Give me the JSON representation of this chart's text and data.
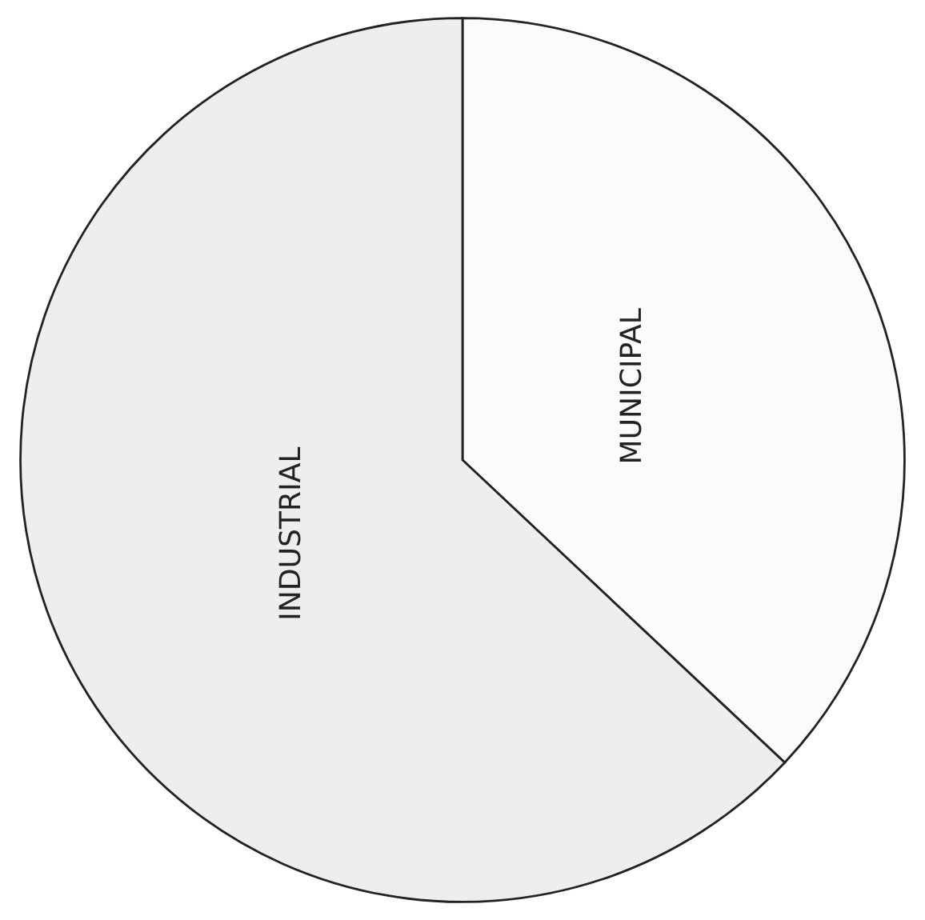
{
  "chart_data": {
    "type": "pie",
    "categories": [
      "MUNICIPAL",
      "INDUSTRIAL"
    ],
    "values": [
      37,
      63
    ],
    "colors": [
      "#fbfbfb",
      "#eeeeee"
    ]
  }
}
